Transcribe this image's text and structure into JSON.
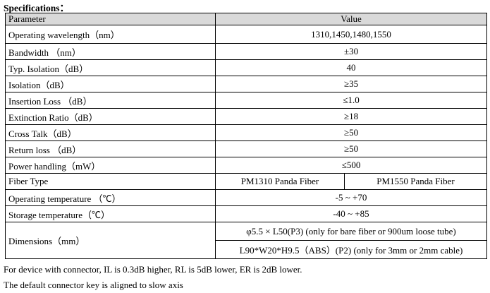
{
  "title": "Specifications：",
  "table": {
    "header": [
      "Parameter",
      "Value"
    ],
    "rows": [
      {
        "parameter": "Operating wavelength（nm）",
        "value": "1310,1450,1480,1550"
      },
      {
        "parameter": "Bandwidth （nm）",
        "value": "±30"
      },
      {
        "parameter": "Typ. Isolation（dB）",
        "value": "40"
      },
      {
        "parameter": "Isolation（dB）",
        "value": "≥35"
      },
      {
        "parameter": "Insertion Loss （dB）",
        "value": "≤1.0"
      },
      {
        "parameter": "Extinction Ratio（dB）",
        "value": "≥18"
      },
      {
        "parameter": "Cross Talk（dB）",
        "value": "≥50"
      },
      {
        "parameter": "Return loss （dB）",
        "value": "≥50"
      },
      {
        "parameter": "Power handling（mW）",
        "value": "≤500"
      },
      {
        "parameter": "Fiber Type",
        "values": [
          "PM1310 Panda Fiber",
          "PM1550 Panda Fiber"
        ]
      },
      {
        "parameter": "Operating temperature （℃）",
        "value": "-5 ~ +70"
      },
      {
        "parameter": "Storage temperature（℃）",
        "value": "-40 ~ +85"
      },
      {
        "parameter": "Dimensions（mm）",
        "lines": [
          "φ5.5 × L50(P3) (only for bare fiber or 900um loose tube)",
          "L90*W20*H9.5（ABS）(P2) (only for 3mm or 2mm cable)"
        ]
      }
    ]
  },
  "notes": [
    "For device with connector, IL is 0.3dB higher, RL is 5dB lower, ER is 2dB lower.",
    "The default connector key is aligned to slow axis"
  ]
}
